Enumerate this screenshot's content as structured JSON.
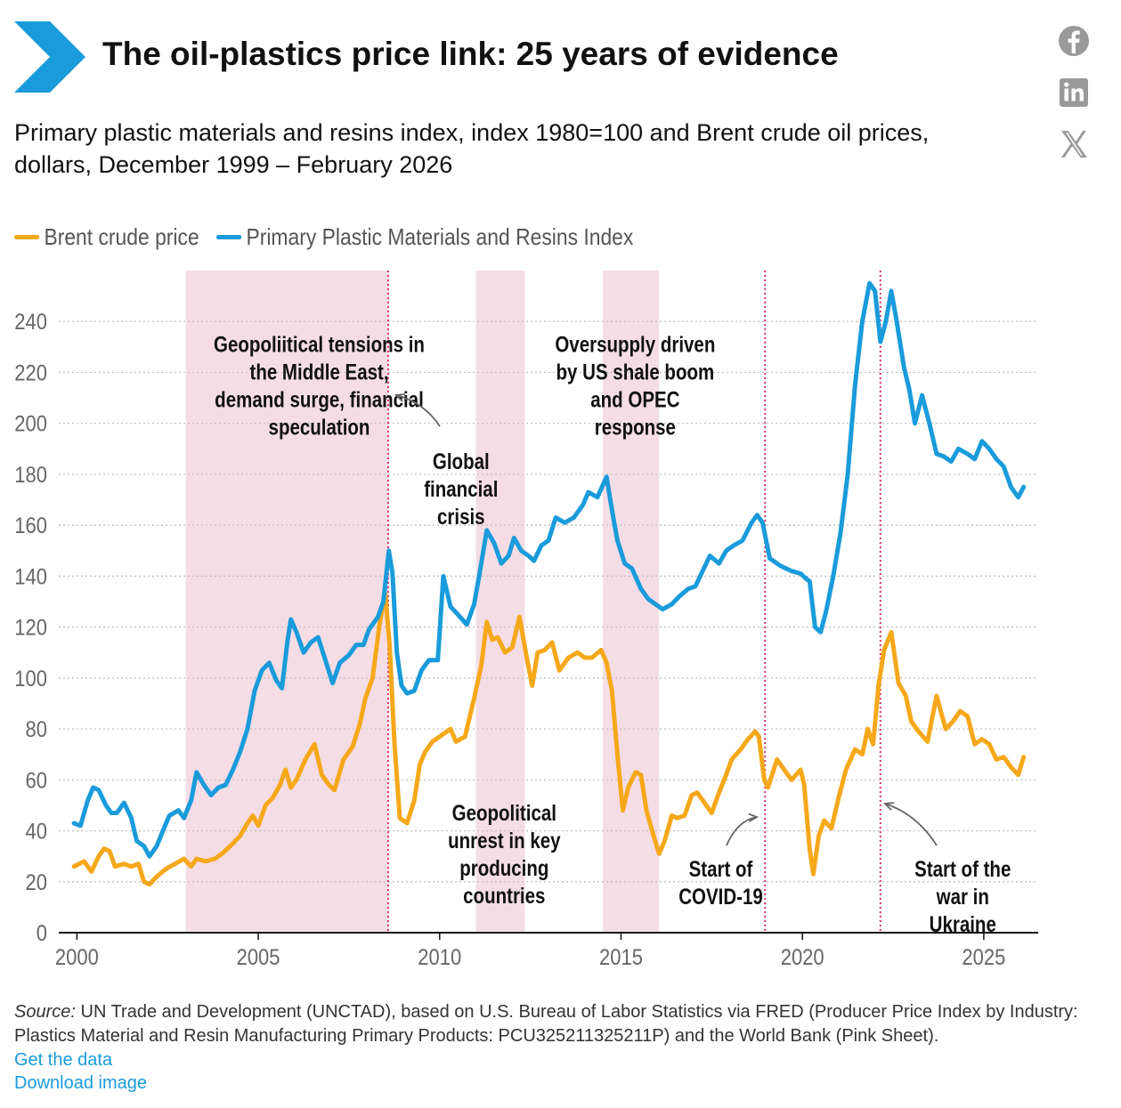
{
  "header": {
    "title": "The oil-plastics price link: 25 years of evidence",
    "subtitle": "Primary plastic materials and resins index, index 1980=100 and Brent crude oil prices, dollars, December 1999 – February 2026"
  },
  "share": {
    "icons": [
      "facebook-icon",
      "linkedin-icon",
      "x-icon"
    ]
  },
  "colors": {
    "brent": "#f6a81b",
    "plastics": "#1a9bdb",
    "shade": "#f5dde5",
    "event_line": "#d6336c",
    "brand": "#1a9bdb"
  },
  "footer": {
    "source_label": "Source:",
    "source_text": " UN Trade and Development (UNCTAD), based on U.S. Bureau of Labor Statistics via FRED (Producer Price Index by Industry: Plastics Material and Resin Manufacturing Primary Products: PCU325211325211P) and the World Bank (Pink Sheet).",
    "get_data": "Get the data",
    "download": "Download image"
  },
  "chart_data": {
    "type": "line",
    "xlim": [
      1999.5,
      2026.5
    ],
    "ylim": [
      0,
      260
    ],
    "x_ticks": [
      2000,
      2005,
      2010,
      2015,
      2020,
      2025
    ],
    "y_ticks": [
      0,
      20,
      40,
      60,
      80,
      100,
      120,
      140,
      160,
      180,
      200,
      220,
      240
    ],
    "grid": "horizontal dotted",
    "legend_position": "top-left",
    "series": [
      {
        "name": "Brent crude price",
        "color": "#f6a81b",
        "points": [
          [
            1999.92,
            26
          ],
          [
            2000.2,
            28
          ],
          [
            2000.4,
            24
          ],
          [
            2000.6,
            30
          ],
          [
            2000.75,
            33
          ],
          [
            2000.9,
            32
          ],
          [
            2001.05,
            26
          ],
          [
            2001.3,
            27
          ],
          [
            2001.5,
            26
          ],
          [
            2001.7,
            27
          ],
          [
            2001.85,
            20
          ],
          [
            2002.0,
            19
          ],
          [
            2002.2,
            22
          ],
          [
            2002.45,
            25
          ],
          [
            2002.7,
            27
          ],
          [
            2002.95,
            29
          ],
          [
            2003.15,
            26
          ],
          [
            2003.3,
            29
          ],
          [
            2003.55,
            28
          ],
          [
            2003.8,
            29
          ],
          [
            2004.0,
            31
          ],
          [
            2004.3,
            35
          ],
          [
            2004.5,
            38
          ],
          [
            2004.7,
            43
          ],
          [
            2004.85,
            46
          ],
          [
            2005.0,
            42
          ],
          [
            2005.2,
            50
          ],
          [
            2005.4,
            53
          ],
          [
            2005.6,
            58
          ],
          [
            2005.75,
            64
          ],
          [
            2005.9,
            57
          ],
          [
            2006.05,
            60
          ],
          [
            2006.3,
            68
          ],
          [
            2006.55,
            74
          ],
          [
            2006.75,
            62
          ],
          [
            2006.95,
            58
          ],
          [
            2007.1,
            56
          ],
          [
            2007.35,
            68
          ],
          [
            2007.6,
            73
          ],
          [
            2007.8,
            82
          ],
          [
            2007.95,
            92
          ],
          [
            2008.15,
            100
          ],
          [
            2008.35,
            122
          ],
          [
            2008.5,
            133
          ],
          [
            2008.62,
            113
          ],
          [
            2008.75,
            75
          ],
          [
            2008.9,
            45
          ],
          [
            2009.1,
            43
          ],
          [
            2009.3,
            52
          ],
          [
            2009.45,
            66
          ],
          [
            2009.6,
            71
          ],
          [
            2009.8,
            75
          ],
          [
            2010.0,
            77
          ],
          [
            2010.3,
            80
          ],
          [
            2010.45,
            75
          ],
          [
            2010.7,
            77
          ],
          [
            2010.95,
            92
          ],
          [
            2011.15,
            105
          ],
          [
            2011.3,
            122
          ],
          [
            2011.45,
            115
          ],
          [
            2011.6,
            116
          ],
          [
            2011.8,
            110
          ],
          [
            2012.0,
            112
          ],
          [
            2012.2,
            124
          ],
          [
            2012.4,
            108
          ],
          [
            2012.55,
            97
          ],
          [
            2012.7,
            110
          ],
          [
            2012.9,
            111
          ],
          [
            2013.1,
            114
          ],
          [
            2013.3,
            103
          ],
          [
            2013.55,
            108
          ],
          [
            2013.8,
            110
          ],
          [
            2014.0,
            108
          ],
          [
            2014.2,
            108
          ],
          [
            2014.45,
            111
          ],
          [
            2014.6,
            106
          ],
          [
            2014.75,
            95
          ],
          [
            2014.9,
            70
          ],
          [
            2015.05,
            48
          ],
          [
            2015.2,
            57
          ],
          [
            2015.4,
            63
          ],
          [
            2015.55,
            62
          ],
          [
            2015.7,
            48
          ],
          [
            2015.9,
            38
          ],
          [
            2016.05,
            31
          ],
          [
            2016.2,
            36
          ],
          [
            2016.4,
            46
          ],
          [
            2016.55,
            45
          ],
          [
            2016.75,
            46
          ],
          [
            2016.95,
            54
          ],
          [
            2017.1,
            55
          ],
          [
            2017.3,
            51
          ],
          [
            2017.5,
            47
          ],
          [
            2017.7,
            55
          ],
          [
            2017.9,
            62
          ],
          [
            2018.05,
            68
          ],
          [
            2018.3,
            72
          ],
          [
            2018.5,
            76
          ],
          [
            2018.7,
            79
          ],
          [
            2018.8,
            77
          ],
          [
            2018.95,
            60
          ],
          [
            2019.05,
            57
          ],
          [
            2019.3,
            68
          ],
          [
            2019.5,
            64
          ],
          [
            2019.7,
            60
          ],
          [
            2019.95,
            64
          ],
          [
            2020.05,
            58
          ],
          [
            2020.2,
            33
          ],
          [
            2020.3,
            23
          ],
          [
            2020.45,
            38
          ],
          [
            2020.6,
            44
          ],
          [
            2020.8,
            41
          ],
          [
            2021.0,
            53
          ],
          [
            2021.2,
            64
          ],
          [
            2021.45,
            72
          ],
          [
            2021.65,
            70
          ],
          [
            2021.8,
            80
          ],
          [
            2021.95,
            74
          ],
          [
            2022.1,
            97
          ],
          [
            2022.25,
            111
          ],
          [
            2022.45,
            118
          ],
          [
            2022.65,
            98
          ],
          [
            2022.85,
            93
          ],
          [
            2023.0,
            83
          ],
          [
            2023.2,
            79
          ],
          [
            2023.45,
            75
          ],
          [
            2023.7,
            93
          ],
          [
            2023.95,
            80
          ],
          [
            2024.15,
            83
          ],
          [
            2024.35,
            87
          ],
          [
            2024.55,
            85
          ],
          [
            2024.75,
            74
          ],
          [
            2024.95,
            76
          ],
          [
            2025.15,
            74
          ],
          [
            2025.35,
            68
          ],
          [
            2025.55,
            69
          ],
          [
            2025.75,
            65
          ],
          [
            2025.95,
            62
          ],
          [
            2026.1,
            69
          ]
        ]
      },
      {
        "name": "Primary Plastic Materials and Resins Index",
        "color": "#1a9bdb",
        "points": [
          [
            1999.92,
            43
          ],
          [
            2000.1,
            42
          ],
          [
            2000.3,
            52
          ],
          [
            2000.45,
            57
          ],
          [
            2000.6,
            56
          ],
          [
            2000.8,
            50
          ],
          [
            2000.95,
            47
          ],
          [
            2001.1,
            47
          ],
          [
            2001.3,
            51
          ],
          [
            2001.5,
            45
          ],
          [
            2001.65,
            36
          ],
          [
            2001.85,
            34
          ],
          [
            2002.0,
            30
          ],
          [
            2002.2,
            34
          ],
          [
            2002.4,
            41
          ],
          [
            2002.55,
            46
          ],
          [
            2002.8,
            48
          ],
          [
            2002.95,
            45
          ],
          [
            2003.15,
            52
          ],
          [
            2003.3,
            63
          ],
          [
            2003.5,
            58
          ],
          [
            2003.7,
            54
          ],
          [
            2003.9,
            57
          ],
          [
            2004.1,
            58
          ],
          [
            2004.3,
            64
          ],
          [
            2004.5,
            71
          ],
          [
            2004.7,
            80
          ],
          [
            2004.9,
            95
          ],
          [
            2005.1,
            103
          ],
          [
            2005.3,
            106
          ],
          [
            2005.5,
            99
          ],
          [
            2005.65,
            96
          ],
          [
            2005.8,
            114
          ],
          [
            2005.9,
            123
          ],
          [
            2006.05,
            118
          ],
          [
            2006.25,
            110
          ],
          [
            2006.45,
            114
          ],
          [
            2006.65,
            116
          ],
          [
            2006.85,
            107
          ],
          [
            2007.05,
            98
          ],
          [
            2007.25,
            106
          ],
          [
            2007.5,
            109
          ],
          [
            2007.7,
            113
          ],
          [
            2007.9,
            113
          ],
          [
            2008.05,
            119
          ],
          [
            2008.3,
            124
          ],
          [
            2008.45,
            130
          ],
          [
            2008.6,
            150
          ],
          [
            2008.7,
            141
          ],
          [
            2008.82,
            110
          ],
          [
            2008.95,
            97
          ],
          [
            2009.1,
            94
          ],
          [
            2009.3,
            95
          ],
          [
            2009.5,
            103
          ],
          [
            2009.7,
            107
          ],
          [
            2009.95,
            107
          ],
          [
            2010.1,
            140
          ],
          [
            2010.3,
            128
          ],
          [
            2010.5,
            125
          ],
          [
            2010.75,
            121
          ],
          [
            2010.95,
            129
          ],
          [
            2011.1,
            141
          ],
          [
            2011.3,
            158
          ],
          [
            2011.5,
            153
          ],
          [
            2011.7,
            145
          ],
          [
            2011.9,
            148
          ],
          [
            2012.05,
            155
          ],
          [
            2012.25,
            150
          ],
          [
            2012.45,
            148
          ],
          [
            2012.6,
            146
          ],
          [
            2012.8,
            152
          ],
          [
            2013.0,
            154
          ],
          [
            2013.2,
            163
          ],
          [
            2013.45,
            161
          ],
          [
            2013.7,
            163
          ],
          [
            2013.95,
            168
          ],
          [
            2014.1,
            173
          ],
          [
            2014.35,
            171
          ],
          [
            2014.6,
            179
          ],
          [
            2014.75,
            166
          ],
          [
            2014.9,
            154
          ],
          [
            2015.1,
            145
          ],
          [
            2015.3,
            143
          ],
          [
            2015.55,
            135
          ],
          [
            2015.75,
            131
          ],
          [
            2015.95,
            129
          ],
          [
            2016.15,
            127
          ],
          [
            2016.4,
            129
          ],
          [
            2016.6,
            132
          ],
          [
            2016.85,
            135
          ],
          [
            2017.05,
            136
          ],
          [
            2017.25,
            142
          ],
          [
            2017.45,
            148
          ],
          [
            2017.7,
            145
          ],
          [
            2017.9,
            150
          ],
          [
            2018.1,
            152
          ],
          [
            2018.35,
            154
          ],
          [
            2018.6,
            161
          ],
          [
            2018.75,
            164
          ],
          [
            2018.9,
            161
          ],
          [
            2019.1,
            147
          ],
          [
            2019.4,
            144
          ],
          [
            2019.7,
            142
          ],
          [
            2019.95,
            141
          ],
          [
            2020.1,
            139
          ],
          [
            2020.2,
            138
          ],
          [
            2020.35,
            120
          ],
          [
            2020.5,
            118
          ],
          [
            2020.65,
            126
          ],
          [
            2020.85,
            140
          ],
          [
            2021.05,
            157
          ],
          [
            2021.25,
            180
          ],
          [
            2021.45,
            215
          ],
          [
            2021.65,
            240
          ],
          [
            2021.85,
            255
          ],
          [
            2022.0,
            252
          ],
          [
            2022.15,
            232
          ],
          [
            2022.3,
            240
          ],
          [
            2022.45,
            252
          ],
          [
            2022.6,
            240
          ],
          [
            2022.8,
            222
          ],
          [
            2022.95,
            213
          ],
          [
            2023.1,
            200
          ],
          [
            2023.3,
            211
          ],
          [
            2023.5,
            200
          ],
          [
            2023.7,
            188
          ],
          [
            2023.9,
            187
          ],
          [
            2024.1,
            185
          ],
          [
            2024.3,
            190
          ],
          [
            2024.55,
            188
          ],
          [
            2024.75,
            186
          ],
          [
            2024.95,
            193
          ],
          [
            2025.15,
            190
          ],
          [
            2025.35,
            186
          ],
          [
            2025.55,
            183
          ],
          [
            2025.75,
            175
          ],
          [
            2025.95,
            171
          ],
          [
            2026.1,
            175
          ]
        ]
      }
    ],
    "shaded_periods": [
      [
        2003.0,
        2008.6
      ],
      [
        2011.0,
        2012.35
      ],
      [
        2014.5,
        2016.05
      ]
    ],
    "event_lines": [
      2008.58,
      2018.97,
      2022.15
    ],
    "annotations": [
      {
        "lines": [
          "Geopoliitical tensions in",
          "the Middle East,",
          "demand surge, financial",
          "speculation"
        ],
        "x": 2006.68,
        "y": 228
      },
      {
        "lines": [
          "Global",
          "financial",
          "crisis"
        ],
        "x": 2010.59,
        "y": 182
      },
      {
        "lines": [
          "Oversupply driven",
          "by US shale boom",
          "and OPEC",
          "response"
        ],
        "x": 2015.39,
        "y": 228
      },
      {
        "lines": [
          "Geopolitical",
          "unrest in key",
          "producing",
          "countries"
        ],
        "x": 2011.78,
        "y": 44
      },
      {
        "lines": [
          "Start of",
          "COVID-19"
        ],
        "x": 2017.75,
        "y": 22
      },
      {
        "lines": [
          "Start of the",
          "war in",
          "Ukraine"
        ],
        "x": 2024.42,
        "y": 22
      }
    ]
  }
}
